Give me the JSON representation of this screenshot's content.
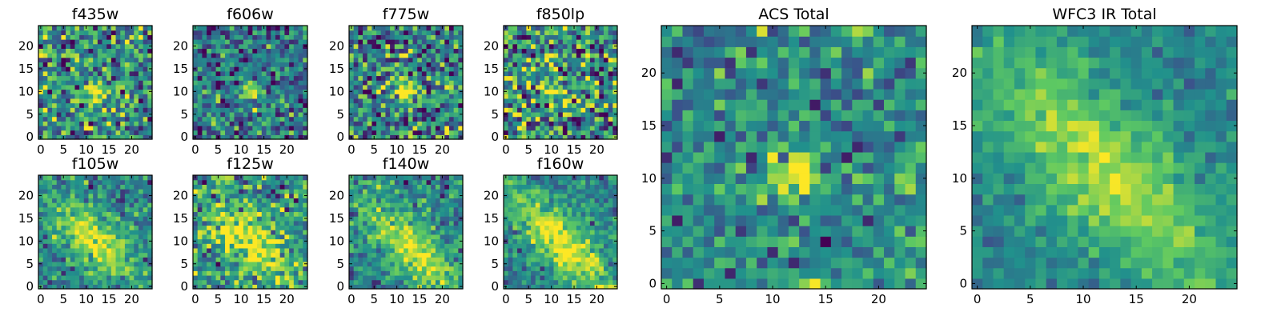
{
  "figure": {
    "colormap": "viridis",
    "colormap_stops": [
      "#440154",
      "#3b528b",
      "#21918c",
      "#5ec962",
      "#fde725"
    ]
  },
  "chart_data": [
    {
      "type": "heatmap",
      "title": "f435w",
      "grid_size": 25,
      "seed": 11,
      "xlim": [
        0,
        24
      ],
      "ylim": [
        0,
        24
      ],
      "xticks": [
        0,
        5,
        10,
        15,
        20
      ],
      "yticks": [
        0,
        5,
        10,
        15,
        20
      ],
      "xtick_labels": [
        "0",
        "5",
        "10",
        "15",
        "20"
      ],
      "ytick_labels": [
        "0",
        "5",
        "10",
        "15",
        "20"
      ],
      "source": {
        "kind": "point",
        "center": [
          12,
          10
        ],
        "width": 1.8,
        "amp": 0.55
      },
      "noise": 0.25,
      "base": 0.5
    },
    {
      "type": "heatmap",
      "title": "f606w",
      "grid_size": 25,
      "seed": 23,
      "xlim": [
        0,
        24
      ],
      "ylim": [
        0,
        24
      ],
      "xticks": [
        0,
        5,
        10,
        15,
        20
      ],
      "yticks": [
        0,
        5,
        10,
        15,
        20
      ],
      "xtick_labels": [
        "0",
        "5",
        "10",
        "15",
        "20"
      ],
      "ytick_labels": [
        "0",
        "5",
        "10",
        "15",
        "20"
      ],
      "source": {
        "kind": "point",
        "center": [
          12,
          10
        ],
        "width": 1.4,
        "amp": 0.6
      },
      "noise": 0.2,
      "base": 0.38
    },
    {
      "type": "heatmap",
      "title": "f775w",
      "grid_size": 25,
      "seed": 37,
      "xlim": [
        0,
        24
      ],
      "ylim": [
        0,
        24
      ],
      "xticks": [
        0,
        5,
        10,
        15,
        20
      ],
      "yticks": [
        0,
        5,
        10,
        15,
        20
      ],
      "xtick_labels": [
        "0",
        "5",
        "10",
        "15",
        "20"
      ],
      "ytick_labels": [
        "0",
        "5",
        "10",
        "15",
        "20"
      ],
      "source": {
        "kind": "point",
        "center": [
          12,
          10
        ],
        "width": 2.0,
        "amp": 0.45
      },
      "noise": 0.25,
      "base": 0.45
    },
    {
      "type": "heatmap",
      "title": "f850lp",
      "grid_size": 25,
      "seed": 41,
      "xlim": [
        0,
        24
      ],
      "ylim": [
        0,
        24
      ],
      "xticks": [
        0,
        5,
        10,
        15,
        20
      ],
      "yticks": [
        0,
        5,
        10,
        15,
        20
      ],
      "xtick_labels": [
        "0",
        "5",
        "10",
        "15",
        "20"
      ],
      "ytick_labels": [
        "0",
        "5",
        "10",
        "15",
        "20"
      ],
      "source": {
        "kind": "point",
        "center": [
          12,
          10
        ],
        "width": 2.2,
        "amp": 0.35
      },
      "noise": 0.3,
      "base": 0.5
    },
    {
      "type": "heatmap",
      "title": "f105w",
      "grid_size": 25,
      "seed": 53,
      "xlim": [
        0,
        24
      ],
      "ylim": [
        0,
        24
      ],
      "xticks": [
        0,
        5,
        10,
        15,
        20
      ],
      "yticks": [
        0,
        5,
        10,
        15,
        20
      ],
      "xtick_labels": [
        "0",
        "5",
        "10",
        "15",
        "20"
      ],
      "ytick_labels": [
        "0",
        "5",
        "10",
        "15",
        "20"
      ],
      "source": {
        "kind": "diagonal",
        "center": [
          12,
          10
        ],
        "width": 3.5,
        "length": 8,
        "amp": 0.5
      },
      "noise": 0.15,
      "base": 0.45
    },
    {
      "type": "heatmap",
      "title": "f125w",
      "grid_size": 25,
      "seed": 67,
      "xlim": [
        0,
        24
      ],
      "ylim": [
        0,
        24
      ],
      "xticks": [
        0,
        5,
        10,
        15,
        20
      ],
      "yticks": [
        0,
        5,
        10,
        15,
        20
      ],
      "xtick_labels": [
        "0",
        "5",
        "10",
        "15",
        "20"
      ],
      "ytick_labels": [
        "0",
        "5",
        "10",
        "15",
        "20"
      ],
      "source": {
        "kind": "diagonal",
        "center": [
          12,
          10
        ],
        "width": 3.5,
        "length": 8,
        "amp": 0.45
      },
      "noise": 0.2,
      "base": 0.5
    },
    {
      "type": "heatmap",
      "title": "f140w",
      "grid_size": 25,
      "seed": 71,
      "xlim": [
        0,
        24
      ],
      "ylim": [
        0,
        24
      ],
      "xticks": [
        0,
        5,
        10,
        15,
        20
      ],
      "yticks": [
        0,
        5,
        10,
        15,
        20
      ],
      "xtick_labels": [
        "0",
        "5",
        "10",
        "15",
        "20"
      ],
      "ytick_labels": [
        "0",
        "5",
        "10",
        "15",
        "20"
      ],
      "source": {
        "kind": "diagonal",
        "center": [
          13,
          9
        ],
        "width": 3.5,
        "length": 9,
        "amp": 0.5
      },
      "noise": 0.15,
      "base": 0.45
    },
    {
      "type": "heatmap",
      "title": "f160w",
      "grid_size": 25,
      "seed": 83,
      "xlim": [
        0,
        24
      ],
      "ylim": [
        0,
        24
      ],
      "xticks": [
        0,
        5,
        10,
        15,
        20
      ],
      "yticks": [
        0,
        5,
        10,
        15,
        20
      ],
      "xtick_labels": [
        "0",
        "5",
        "10",
        "15",
        "20"
      ],
      "ytick_labels": [
        "0",
        "5",
        "10",
        "15",
        "20"
      ],
      "source": {
        "kind": "diagonal",
        "center": [
          12,
          10
        ],
        "width": 3.5,
        "length": 10,
        "amp": 0.55
      },
      "noise": 0.13,
      "base": 0.45
    },
    {
      "type": "heatmap",
      "title": "ACS Total",
      "grid_size": 25,
      "seed": 97,
      "xlim": [
        0,
        24
      ],
      "ylim": [
        0,
        24
      ],
      "xticks": [
        0,
        5,
        10,
        15,
        20
      ],
      "yticks": [
        0,
        5,
        10,
        15,
        20
      ],
      "xtick_labels": [
        "0",
        "5",
        "10",
        "15",
        "20"
      ],
      "ytick_labels": [
        "0",
        "5",
        "10",
        "15",
        "20"
      ],
      "source": {
        "kind": "point",
        "center": [
          12,
          10
        ],
        "width": 1.5,
        "amp": 0.6
      },
      "noise": 0.17,
      "base": 0.47
    },
    {
      "type": "heatmap",
      "title": "WFC3 IR Total",
      "grid_size": 25,
      "seed": 101,
      "xlim": [
        0,
        24
      ],
      "ylim": [
        0,
        24
      ],
      "xticks": [
        0,
        5,
        10,
        15,
        20
      ],
      "yticks": [
        0,
        5,
        10,
        15,
        20
      ],
      "xtick_labels": [
        "0",
        "5",
        "10",
        "15",
        "20"
      ],
      "ytick_labels": [
        "0",
        "5",
        "10",
        "15",
        "20"
      ],
      "source": {
        "kind": "diagonal",
        "center": [
          12,
          11
        ],
        "width": 3.8,
        "length": 11,
        "amp": 0.45
      },
      "noise": 0.08,
      "base": 0.45
    }
  ]
}
